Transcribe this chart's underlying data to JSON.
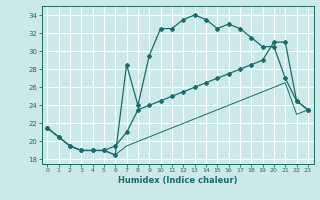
{
  "xlabel": "Humidex (Indice chaleur)",
  "bg_color": "#cce9e9",
  "grid_color": "#b0d4d4",
  "line_color": "#1a6b6b",
  "xlim": [
    -0.5,
    23.5
  ],
  "ylim": [
    17.5,
    35.0
  ],
  "xticks": [
    0,
    1,
    2,
    3,
    4,
    5,
    6,
    7,
    8,
    9,
    10,
    11,
    12,
    13,
    14,
    15,
    16,
    17,
    18,
    19,
    20,
    21,
    22,
    23
  ],
  "yticks": [
    18,
    20,
    22,
    24,
    26,
    28,
    30,
    32,
    34
  ],
  "line1_x": [
    0,
    1,
    2,
    3,
    4,
    5,
    6,
    7,
    8,
    9,
    10,
    11,
    12,
    13,
    14,
    15,
    16,
    17,
    18,
    19,
    20,
    21,
    22,
    23
  ],
  "line1_y": [
    21.5,
    20.5,
    19.5,
    19.0,
    19.0,
    19.0,
    18.5,
    28.5,
    24.0,
    29.5,
    32.5,
    32.5,
    33.5,
    34.0,
    33.5,
    32.5,
    33.0,
    32.5,
    31.5,
    30.5,
    30.5,
    27.0,
    24.5,
    23.5
  ],
  "line2_x": [
    0,
    1,
    2,
    3,
    4,
    5,
    6,
    7,
    8,
    9,
    10,
    11,
    12,
    13,
    14,
    15,
    16,
    17,
    18,
    19,
    20,
    21,
    22,
    23
  ],
  "line2_y": [
    21.5,
    20.5,
    19.5,
    19.0,
    19.0,
    19.0,
    19.5,
    21.0,
    23.5,
    24.0,
    24.5,
    25.0,
    25.5,
    26.0,
    26.5,
    27.0,
    27.5,
    28.0,
    28.5,
    29.0,
    31.0,
    31.0,
    24.5,
    23.5
  ],
  "line3_x": [
    0,
    1,
    2,
    3,
    4,
    5,
    6,
    7,
    8,
    9,
    10,
    11,
    12,
    13,
    14,
    15,
    16,
    17,
    18,
    19,
    20,
    21,
    22,
    23
  ],
  "line3_y": [
    21.5,
    20.5,
    19.5,
    19.0,
    19.0,
    19.0,
    18.5,
    19.5,
    20.0,
    20.5,
    21.0,
    21.5,
    22.0,
    22.5,
    23.0,
    23.5,
    24.0,
    24.5,
    25.0,
    25.5,
    26.0,
    26.5,
    23.0,
    23.5
  ]
}
